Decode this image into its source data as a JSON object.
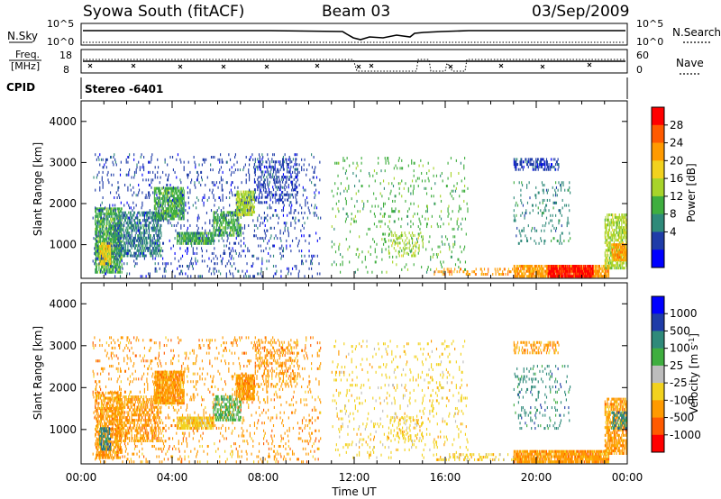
{
  "header": {
    "station": "Syowa South (fitACF)",
    "beam": "Beam 03",
    "date": "03/Sep/2009"
  },
  "top_panels": {
    "nsky_label": "N.Sky",
    "nsky_left_ticks": [
      "10^5",
      "10^0"
    ],
    "nsky_right_ticks": [
      "10^5",
      "10^0"
    ],
    "nsearch_label": "N.Search",
    "freq_label_line1": "Freq.",
    "freq_label_line2": "[MHz]",
    "freq_ticks": [
      "18",
      "8"
    ],
    "nave_ticks": [
      "60",
      "0"
    ],
    "nave_label": "Nave",
    "cpid_label": "CPID",
    "cpid_value": "Stereo -6401"
  },
  "colors": {
    "power_scale": [
      "#0000ff",
      "#1f3ca8",
      "#2f8a7a",
      "#3fae3f",
      "#a8d42a",
      "#f2d21e",
      "#ff9a00",
      "#ff5a00",
      "#ff0000"
    ],
    "velocity_scale": [
      "#0000ff",
      "#1f3ca8",
      "#2f8a7a",
      "#3fae3f",
      "#bdbdbd",
      "#f2d21e",
      "#ff9a00",
      "#ff5a00",
      "#ff0000"
    ],
    "ground_scatter": "#b4b4b4"
  },
  "chart_data": [
    {
      "type": "heatmap",
      "panel": "power",
      "xlabel": "",
      "ylabel": "Slant Range [km]",
      "xlim": [
        0,
        24
      ],
      "ylim": [
        180,
        4500
      ],
      "x_tick_labels": [
        "00:00",
        "04:00",
        "08:00",
        "12:00",
        "16:00",
        "20:00",
        "00:00"
      ],
      "y_ticks": [
        1000,
        2000,
        3000,
        4000
      ],
      "colorbar_label": "Power [dB]",
      "colorbar_ticks": [
        "28",
        "24",
        "20",
        "16",
        "12",
        "8",
        "4"
      ],
      "regions": [
        {
          "t": [
            0.6,
            1.8
          ],
          "r": [
            300,
            1900
          ],
          "level": 3,
          "density": 0.7
        },
        {
          "t": [
            0.8,
            1.3
          ],
          "r": [
            500,
            1000
          ],
          "level": 5,
          "density": 0.8
        },
        {
          "t": [
            1.5,
            3.5
          ],
          "r": [
            700,
            1800
          ],
          "level": 2,
          "density": 0.5
        },
        {
          "t": [
            3.2,
            4.5
          ],
          "r": [
            1600,
            2400
          ],
          "level": 3,
          "density": 0.7
        },
        {
          "t": [
            4.2,
            5.8
          ],
          "r": [
            1000,
            1300
          ],
          "level": 3,
          "density": 0.8
        },
        {
          "t": [
            5.8,
            7.0
          ],
          "r": [
            1200,
            1800
          ],
          "level": 3,
          "density": 0.6
        },
        {
          "t": [
            6.8,
            7.6
          ],
          "r": [
            1700,
            2300
          ],
          "level": 4,
          "density": 0.8
        },
        {
          "t": [
            7.6,
            9.5
          ],
          "r": [
            2000,
            3100
          ],
          "level": 1,
          "density": 0.25
        },
        {
          "t": [
            0.5,
            10.5
          ],
          "r": [
            200,
            3200
          ],
          "level": 1,
          "density": 0.08
        },
        {
          "t": [
            11.0,
            17.0
          ],
          "r": [
            300,
            3100
          ],
          "level": 3,
          "density": 0.05
        },
        {
          "t": [
            13.5,
            15.0
          ],
          "r": [
            700,
            1300
          ],
          "level": 4,
          "density": 0.18
        },
        {
          "t": [
            15.5,
            19.0
          ],
          "r": [
            250,
            400
          ],
          "level": 6,
          "density": 0.25
        },
        {
          "t": [
            19.0,
            23.2
          ],
          "r": [
            200,
            500
          ],
          "level": 6,
          "density": 0.75
        },
        {
          "t": [
            20.5,
            22.5
          ],
          "r": [
            200,
            450
          ],
          "level": 8,
          "density": 0.8
        },
        {
          "t": [
            19.0,
            21.0
          ],
          "r": [
            2800,
            3100
          ],
          "level": 1,
          "density": 0.4
        },
        {
          "t": [
            19.0,
            21.5
          ],
          "r": [
            1000,
            2500
          ],
          "level": 2,
          "density": 0.1
        },
        {
          "t": [
            23.0,
            24.0
          ],
          "r": [
            400,
            1700
          ],
          "level": 4,
          "density": 0.6
        },
        {
          "t": [
            23.3,
            24.0
          ],
          "r": [
            600,
            1000
          ],
          "level": 6,
          "density": 0.7
        }
      ]
    },
    {
      "type": "heatmap",
      "panel": "velocity",
      "xlabel": "Time UT",
      "ylabel": "Slant Range [km]",
      "xlim": [
        0,
        24
      ],
      "ylim": [
        180,
        4500
      ],
      "x_tick_labels": [
        "00:00",
        "04:00",
        "08:00",
        "12:00",
        "16:00",
        "20:00",
        "00:00"
      ],
      "y_ticks": [
        1000,
        2000,
        3000,
        4000
      ],
      "colorbar_label": "Velocity [m s^-1]",
      "colorbar_ticks": [
        "1000",
        "500",
        "100",
        "25",
        "-25",
        "-100",
        "-500",
        "-1000"
      ],
      "regions": [
        {
          "t": [
            0.6,
            1.8
          ],
          "r": [
            300,
            1900
          ],
          "level": 6,
          "density": 0.6
        },
        {
          "t": [
            0.8,
            1.3
          ],
          "r": [
            500,
            1000
          ],
          "level": 2,
          "density": 0.6
        },
        {
          "t": [
            1.5,
            3.5
          ],
          "r": [
            700,
            1800
          ],
          "level": 6,
          "density": 0.5
        },
        {
          "t": [
            3.2,
            4.5
          ],
          "r": [
            1600,
            2400
          ],
          "level": 6,
          "density": 0.8
        },
        {
          "t": [
            4.2,
            5.8
          ],
          "r": [
            1000,
            1300
          ],
          "level": 5,
          "density": 0.8
        },
        {
          "t": [
            5.8,
            7.0
          ],
          "r": [
            1200,
            1800
          ],
          "level": 3,
          "density": 0.5
        },
        {
          "t": [
            6.8,
            7.6
          ],
          "r": [
            1700,
            2300
          ],
          "level": 6,
          "density": 0.8
        },
        {
          "t": [
            7.6,
            9.5
          ],
          "r": [
            2000,
            3100
          ],
          "level": 6,
          "density": 0.2
        },
        {
          "t": [
            0.5,
            10.5
          ],
          "r": [
            200,
            3200
          ],
          "level": 6,
          "density": 0.08
        },
        {
          "t": [
            11.0,
            17.0
          ],
          "r": [
            300,
            3100
          ],
          "level": 5,
          "density": 0.06
        },
        {
          "t": [
            13.5,
            15.0
          ],
          "r": [
            700,
            1300
          ],
          "level": 5,
          "density": 0.18
        },
        {
          "t": [
            15.5,
            19.0
          ],
          "r": [
            250,
            400
          ],
          "level": 5,
          "density": 0.2
        },
        {
          "t": [
            19.0,
            23.2
          ],
          "r": [
            200,
            450
          ],
          "level": 6,
          "density": 0.85
        },
        {
          "t": [
            19.0,
            21.0
          ],
          "r": [
            2800,
            3100
          ],
          "level": 6,
          "density": 0.35
        },
        {
          "t": [
            19.0,
            21.5
          ],
          "r": [
            1000,
            2500
          ],
          "level": 2,
          "density": 0.1
        },
        {
          "t": [
            23.0,
            24.0
          ],
          "r": [
            400,
            1700
          ],
          "level": 6,
          "density": 0.6
        },
        {
          "t": [
            23.3,
            24.0
          ],
          "r": [
            1000,
            1400
          ],
          "level": 2,
          "density": 0.5
        }
      ]
    }
  ]
}
